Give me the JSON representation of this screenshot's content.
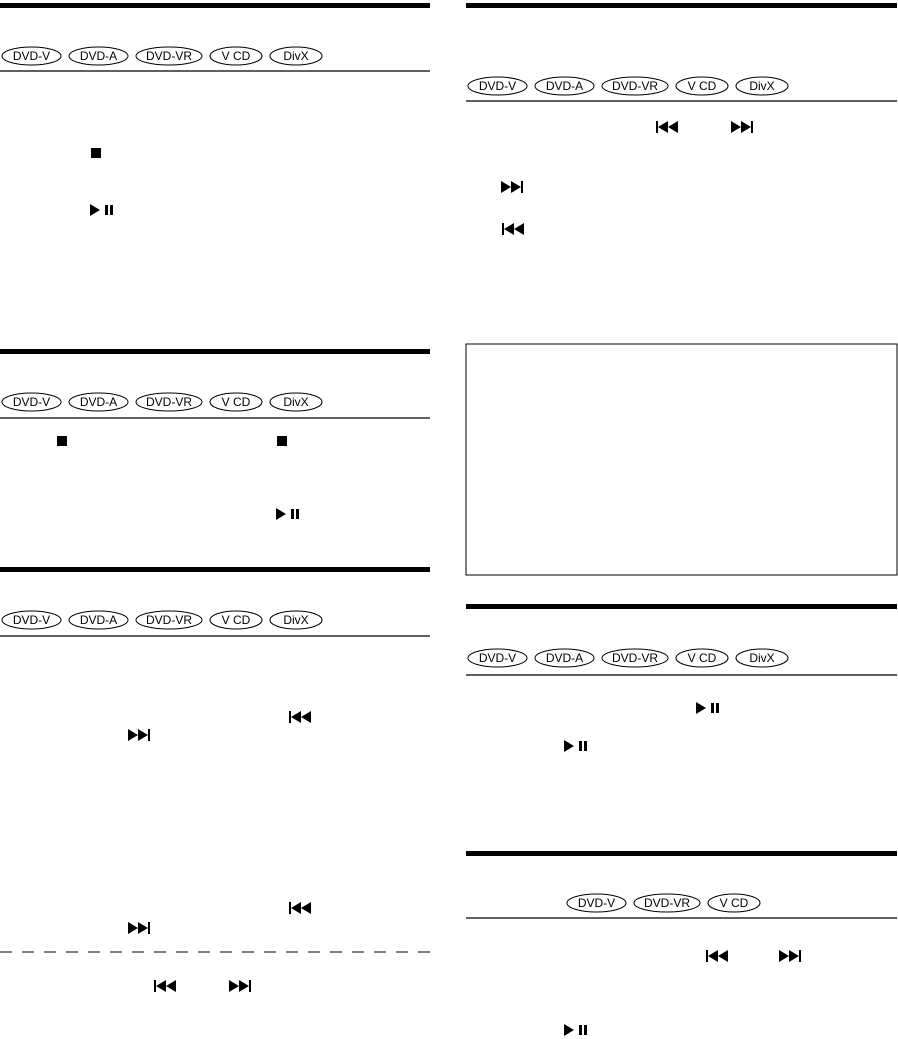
{
  "sections": [
    {
      "formats": [
        "DVD-V",
        "DVD-A",
        "DVD-VR",
        "V CD",
        "DivX"
      ]
    },
    {
      "formats": [
        "DVD-V",
        "DVD-A",
        "DVD-VR",
        "V CD",
        "DivX"
      ]
    },
    {
      "formats": [
        "DVD-V",
        "DVD-A",
        "DVD-VR",
        "V CD",
        "DivX"
      ]
    },
    {
      "formats": [
        "DVD-V",
        "DVD-A",
        "DVD-VR",
        "V CD",
        "DivX"
      ]
    },
    {
      "formats": [
        "DVD-V",
        "DVD-A",
        "DVD-VR",
        "V CD",
        "DivX"
      ]
    },
    {
      "formats": [
        "DVD-V",
        "DVD-VR",
        "V CD"
      ]
    }
  ]
}
